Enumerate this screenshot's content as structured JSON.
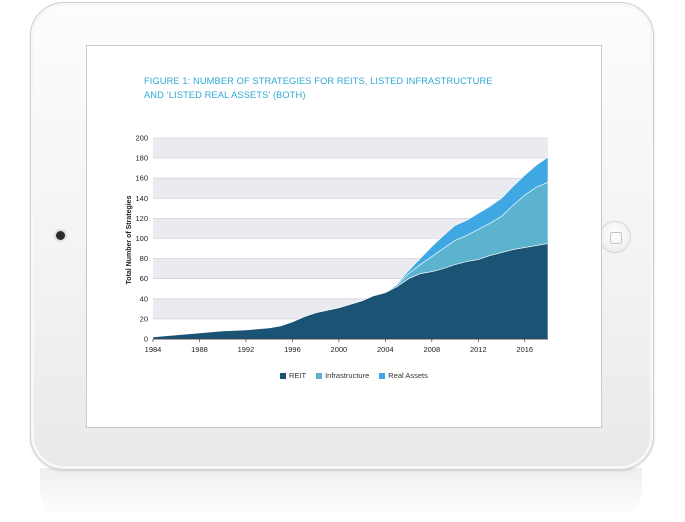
{
  "device": {
    "camera_icon": "camera-icon",
    "home_icon": "home-button-icon"
  },
  "figure": {
    "title_line1": "FIGURE 1: NUMBER OF STRATEGIES FOR REITS, LISTED INFRASTRUCTURE",
    "title_line2": "AND ‘LISTED REAL ASSETS’ (BOTH)"
  },
  "colors": {
    "reit": "#1a5374",
    "infrastructure": "#5bb3cf",
    "real_assets": "#3fa8e2",
    "grid_band": "#e9ebf0",
    "axis_text": "#222222"
  },
  "chart_data": {
    "type": "area",
    "stacked": true,
    "xlabel": "",
    "ylabel": "Total Number of Strategies",
    "xlim": [
      1984,
      2018
    ],
    "ylim": [
      0,
      200
    ],
    "x_ticks": [
      1984,
      1988,
      1992,
      1996,
      2000,
      2004,
      2008,
      2012,
      2016
    ],
    "y_ticks": [
      0,
      20,
      40,
      60,
      80,
      100,
      120,
      140,
      160,
      180,
      200
    ],
    "grid": true,
    "legend_position": "bottom",
    "x": [
      1984,
      1986,
      1988,
      1990,
      1992,
      1994,
      1995,
      1996,
      1997,
      1998,
      2000,
      2002,
      2003,
      2004,
      2005,
      2006,
      2007,
      2008,
      2009,
      2010,
      2011,
      2012,
      2013,
      2014,
      2015,
      2016,
      2017,
      2018
    ],
    "series": [
      {
        "name": "REIT",
        "values": [
          2,
          4,
          6,
          8,
          9,
          11,
          13,
          17,
          22,
          26,
          31,
          38,
          43,
          46,
          52,
          60,
          65,
          67,
          70,
          74,
          77,
          79,
          83,
          86,
          89,
          91,
          93,
          95
        ]
      },
      {
        "name": "Infrastructure",
        "values": [
          0,
          0,
          0,
          0,
          0,
          0,
          0,
          0,
          0,
          0,
          0,
          0,
          0,
          0,
          2,
          5,
          9,
          15,
          20,
          24,
          26,
          30,
          32,
          36,
          44,
          52,
          58,
          61
        ]
      },
      {
        "name": "Real Assets",
        "values": [
          0,
          0,
          0,
          0,
          0,
          0,
          0,
          0,
          0,
          0,
          0,
          0,
          0,
          0,
          1,
          3,
          6,
          10,
          13,
          15,
          15,
          16,
          17,
          18,
          19,
          20,
          22,
          25
        ]
      }
    ]
  }
}
